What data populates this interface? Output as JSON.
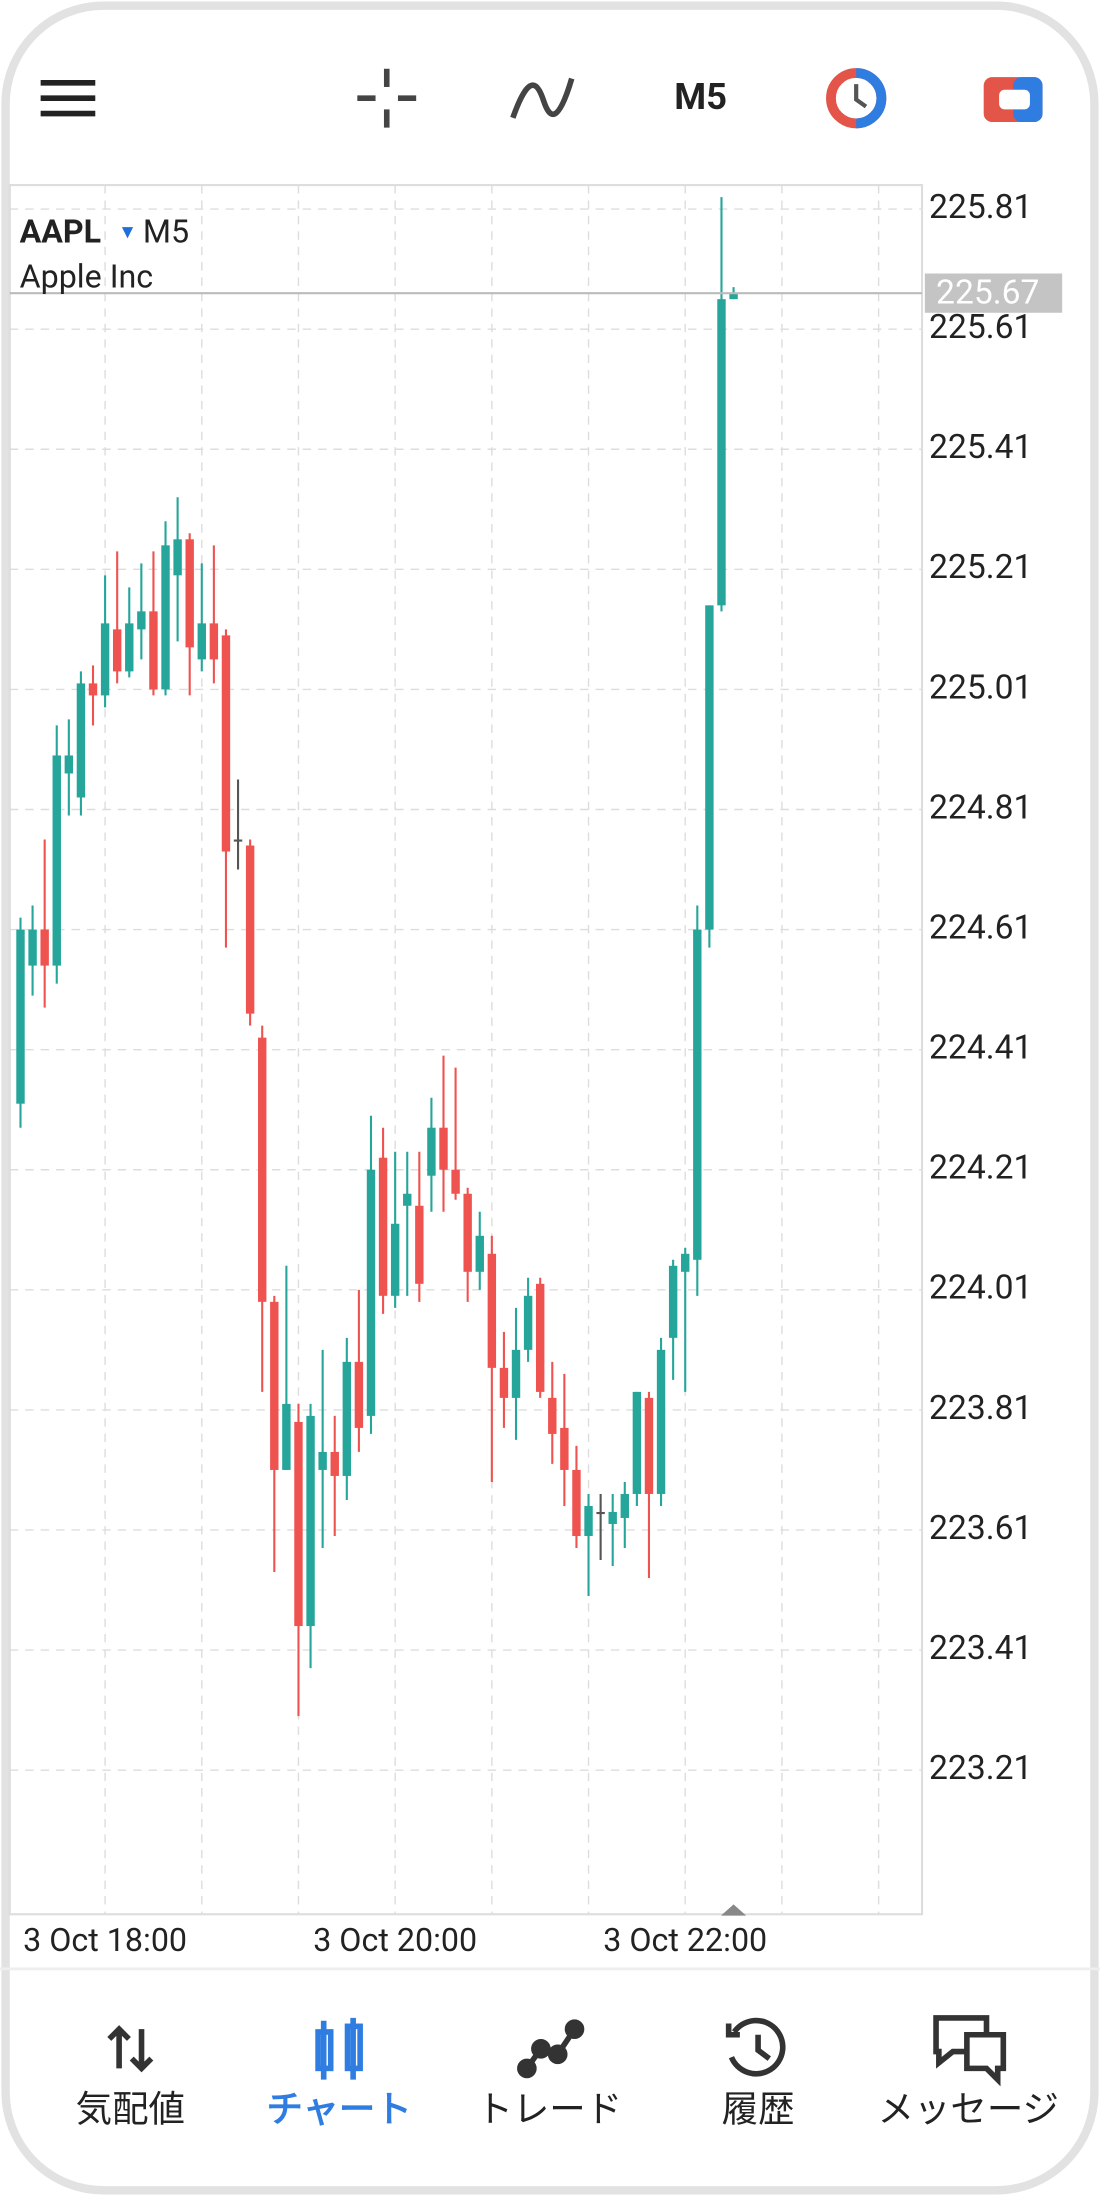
{
  "toolbar": {
    "timeframe": "M5"
  },
  "chart_data": {
    "type": "candlestick",
    "symbol": "AAPL",
    "timeframe": "M5",
    "description": "Apple Inc",
    "categories": [
      null,
      null,
      null,
      null,
      null,
      null,
      null,
      null,
      "3 Oct 18:00",
      null,
      null,
      null,
      null,
      null,
      null,
      null,
      null,
      null,
      null,
      null,
      null,
      null,
      null,
      null,
      null,
      null,
      null,
      null,
      null,
      null,
      null,
      null,
      "3 Oct 20:00",
      null,
      null,
      null,
      null,
      null,
      null,
      null,
      null,
      null,
      null,
      null,
      null,
      null,
      null,
      null,
      null,
      null,
      null,
      null,
      null,
      null,
      null,
      null,
      "3 Oct 22:00",
      null,
      null,
      null,
      null
    ],
    "open": [
      224.36,
      224.32,
      224.55,
      224.61,
      224.55,
      224.87,
      224.83,
      225.02,
      225.0,
      225.11,
      225.04,
      225.11,
      225.14,
      225.01,
      225.2,
      225.26,
      225.06,
      225.12,
      225.1,
      224.76,
      224.75,
      224.43,
      223.99,
      223.71,
      223.79,
      223.45,
      223.71,
      223.74,
      223.7,
      223.89,
      223.8,
      224.23,
      224.0,
      224.15,
      224.15,
      224.2,
      224.28,
      224.21,
      224.17,
      224.04,
      224.07,
      223.88,
      223.83,
      223.91,
      224.02,
      223.83,
      223.78,
      223.71,
      223.6,
      223.64,
      223.62,
      223.63,
      223.67,
      223.83,
      223.67,
      223.93,
      224.04,
      224.06,
      224.61,
      225.15,
      225.66
    ],
    "high": [
      224.63,
      224.63,
      224.65,
      224.76,
      224.95,
      224.96,
      225.04,
      225.05,
      225.2,
      225.24,
      225.18,
      225.22,
      225.24,
      225.29,
      225.33,
      225.27,
      225.22,
      225.25,
      225.11,
      224.86,
      224.76,
      224.45,
      224.0,
      224.05,
      223.82,
      223.82,
      223.91,
      223.8,
      223.93,
      224.01,
      224.3,
      224.28,
      224.24,
      224.24,
      224.24,
      224.33,
      224.4,
      224.38,
      224.18,
      224.14,
      224.1,
      223.94,
      223.98,
      224.03,
      224.03,
      223.89,
      223.87,
      223.75,
      223.67,
      223.67,
      223.67,
      223.69,
      223.84,
      223.84,
      223.93,
      224.06,
      224.08,
      224.65,
      225.15,
      225.83,
      225.68
    ],
    "low": [
      224.3,
      224.28,
      224.5,
      224.48,
      224.52,
      224.8,
      224.8,
      224.95,
      224.98,
      225.02,
      225.03,
      225.06,
      225.0,
      225.0,
      225.09,
      225.0,
      225.04,
      225.02,
      224.58,
      224.71,
      224.45,
      223.84,
      223.54,
      223.71,
      223.3,
      223.38,
      223.58,
      223.6,
      223.66,
      223.74,
      223.77,
      223.97,
      223.98,
      224.0,
      223.99,
      224.14,
      224.14,
      224.16,
      223.99,
      224.01,
      223.69,
      223.78,
      223.76,
      223.89,
      223.83,
      223.72,
      223.65,
      223.58,
      223.5,
      223.56,
      223.55,
      223.58,
      223.65,
      223.53,
      223.65,
      223.86,
      223.84,
      224.0,
      224.58,
      225.14,
      225.66
    ],
    "close": [
      224.44,
      224.61,
      224.61,
      224.55,
      224.9,
      224.9,
      225.02,
      225.0,
      225.12,
      225.04,
      225.12,
      225.14,
      225.01,
      225.25,
      225.26,
      225.08,
      225.12,
      225.06,
      224.74,
      224.76,
      224.47,
      223.99,
      223.71,
      223.82,
      223.45,
      223.8,
      223.74,
      223.7,
      223.89,
      223.78,
      224.21,
      224.0,
      224.12,
      224.17,
      224.02,
      224.28,
      224.21,
      224.17,
      224.04,
      224.1,
      223.88,
      223.83,
      223.91,
      224.0,
      223.84,
      223.77,
      223.71,
      223.6,
      223.65,
      223.64,
      223.64,
      223.67,
      223.84,
      223.67,
      223.91,
      224.05,
      224.07,
      224.61,
      225.15,
      225.66,
      225.67
    ],
    "up_color": "#26a69a",
    "down_color": "#ef5350",
    "doji_color": "#555555",
    "current_price": 225.67,
    "ylim": [
      222.97,
      225.85
    ],
    "yticks": [
      223.21,
      223.41,
      223.61,
      223.81,
      224.01,
      224.21,
      224.41,
      224.61,
      224.81,
      225.01,
      225.21,
      225.41,
      225.61,
      225.81
    ],
    "grid": true
  },
  "nav": {
    "items": [
      "気配値",
      "チャート",
      "トレード",
      "履歴",
      "メッセージ"
    ],
    "active": 1
  }
}
